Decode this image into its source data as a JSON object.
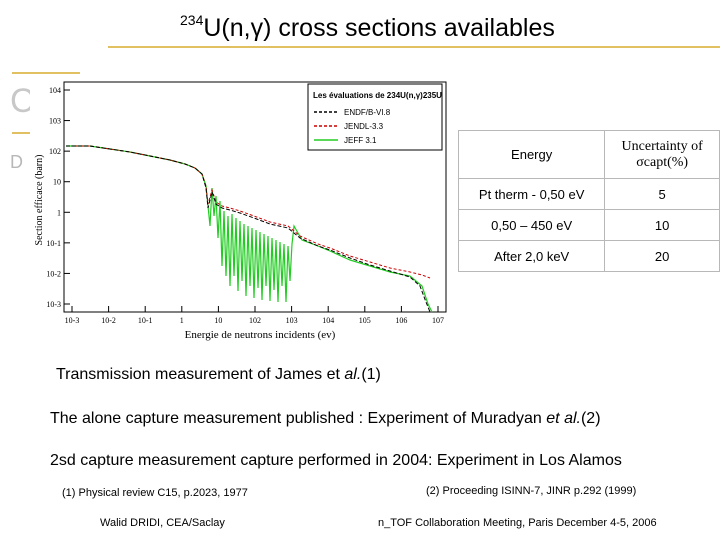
{
  "title": {
    "sup": "234",
    "text": "U(n,γ) cross sections availables"
  },
  "decor": {
    "c_letter": "C",
    "d_letter": "D"
  },
  "plot": {
    "legend_title": "Les évaluations de 234U(n,γ)235U",
    "legend": [
      "ENDF/B-VI.8",
      "JENDL-3.3",
      "JEFF 3.1"
    ],
    "series_colors": {
      "ENDF/B-VI.8": "#000000",
      "JENDL-3.3": "#cc0000",
      "JEFF 3.1": "#22cc22"
    },
    "xlabel": "Energie de neutrons incidents (ev)",
    "ylabel": "Section efficace (barn)",
    "x_ticks": [
      "10-3",
      "10-2",
      "10-1",
      "1",
      "10",
      "102",
      "103",
      "104",
      "105",
      "106",
      "107"
    ],
    "y_ticks": [
      "104",
      "103",
      "102",
      "10",
      "1",
      "10-1",
      "10-2",
      "10-3"
    ]
  },
  "table": {
    "headers": [
      "Energy",
      "Uncertainty of σcapt(%)"
    ],
    "rows": [
      [
        "Pt therm - 0,50 eV",
        "5"
      ],
      [
        "0,50 – 450 eV",
        "10"
      ],
      [
        "After 2,0 keV",
        "20"
      ]
    ]
  },
  "text": {
    "line1_pre": "Transmission measurement of James et ",
    "line1_em": "al.",
    "line1_post": "(1)",
    "line2_pre": "The alone capture measurement published : Experiment of Muradyan ",
    "line2_em": "et al.",
    "line2_post": "(2)",
    "line3": "2sd capture measurement capture performed in 2004: Experiment in Los Alamos"
  },
  "refs": {
    "ref1": "(1) Physical review C15, p.2023, 1977",
    "ref2": "(2) Proceeding ISINN-7, JINR p.292 (1999)"
  },
  "footer": {
    "left": "Walid DRIDI, CEA/Saclay",
    "right": "n_TOF Collaboration Meeting, Paris December 4-5, 2006"
  }
}
